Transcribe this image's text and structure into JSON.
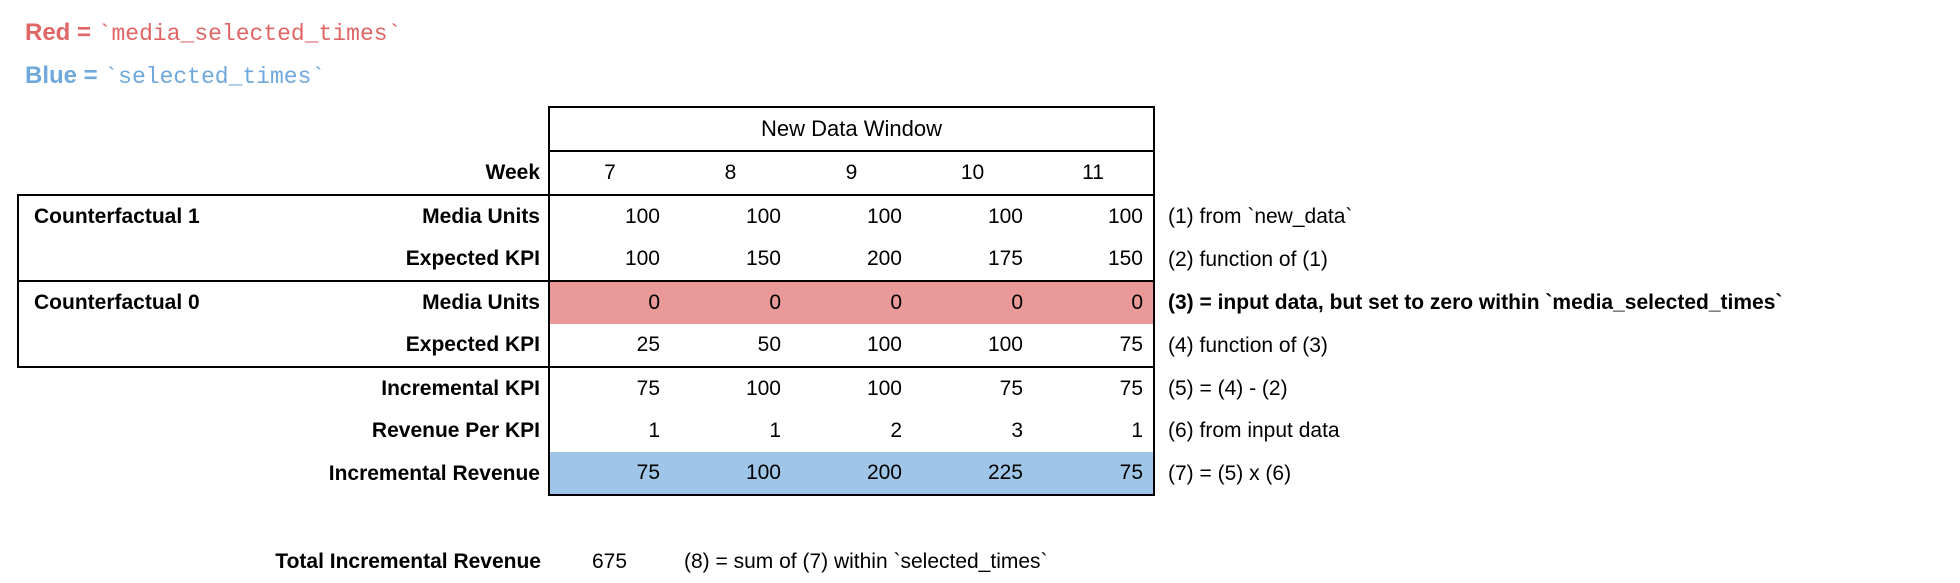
{
  "legend": {
    "red": {
      "prefix": "Red = ",
      "code": "`media_selected_times`"
    },
    "blue": {
      "prefix": "Blue = ",
      "code": "`selected_times`"
    }
  },
  "table": {
    "header_span": "New Data Window",
    "week_label": "Week",
    "weeks": [
      "7",
      "8",
      "9",
      "10",
      "11"
    ],
    "rows": [
      {
        "group": "Counterfactual 1",
        "label": "Media Units",
        "values": [
          100,
          100,
          100,
          100,
          100
        ],
        "highlight": null,
        "note": "(1) from `new_data`",
        "note_bold": false
      },
      {
        "group": "",
        "label": "Expected KPI",
        "values": [
          100,
          150,
          200,
          175,
          150
        ],
        "highlight": null,
        "note": "(2) function of (1)",
        "note_bold": false
      },
      {
        "group": "Counterfactual 0",
        "label": "Media Units",
        "values": [
          0,
          0,
          0,
          0,
          0
        ],
        "highlight": "red",
        "note": "(3) = input data, but set to zero within `media_selected_times`",
        "note_bold": true
      },
      {
        "group": "",
        "label": "Expected KPI",
        "values": [
          25,
          50,
          100,
          100,
          75
        ],
        "highlight": null,
        "note": "(4) function of (3)",
        "note_bold": false
      },
      {
        "group": null,
        "label": "Incremental KPI",
        "values": [
          75,
          100,
          100,
          75,
          75
        ],
        "highlight": null,
        "note": "(5) = (4) - (2)",
        "note_bold": false
      },
      {
        "group": null,
        "label": "Revenue Per KPI",
        "values": [
          1,
          1,
          2,
          3,
          1
        ],
        "highlight": null,
        "note": "(6) from input data",
        "note_bold": false
      },
      {
        "group": null,
        "label": "Incremental Revenue",
        "values": [
          75,
          100,
          200,
          225,
          75
        ],
        "highlight": "blue",
        "note": "(7) = (5) x (6)",
        "note_bold": false
      }
    ],
    "total": {
      "label": "Total Incremental Revenue",
      "value": "675",
      "note": "(8) = sum of (7) within `selected_times`"
    }
  },
  "colors": {
    "red_fill": "#EA9999",
    "blue_fill": "#9FC5E8",
    "red_text": "#E06666",
    "blue_text": "#6FA8DC",
    "border": "#000000"
  }
}
